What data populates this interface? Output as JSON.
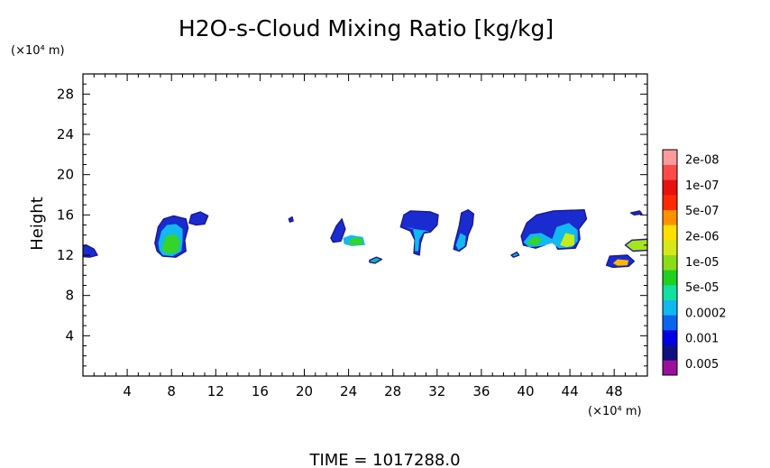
{
  "chart_data": {
    "type": "heatmap",
    "title": "H2O-s-Cloud Mixing Ratio [kg/kg]",
    "ylabel": "Height",
    "y_unit": "(×10⁴ m)",
    "x_unit": "(×10⁴ m)",
    "xlim": [
      0,
      51
    ],
    "ylim": [
      0,
      30
    ],
    "x_ticks": [
      "4",
      "8",
      "12",
      "16",
      "20",
      "24",
      "28",
      "32",
      "36",
      "40",
      "44",
      "48"
    ],
    "y_ticks": [
      "4",
      "8",
      "12",
      "16",
      "20",
      "24",
      "28"
    ],
    "time_label": "TIME = 1017288.0",
    "legend": {
      "placement": "right",
      "labels": [
        "0.005",
        "0.001",
        "0.0002",
        "5e-05",
        "1e-05",
        "2e-06",
        "5e-07",
        "1e-07",
        "2e-08"
      ],
      "colors": [
        "#9a109a",
        "#101080",
        "#0000e0",
        "#0a64f0",
        "#10b8f0",
        "#10e0a0",
        "#20d020",
        "#8cdc1a",
        "#d6e818",
        "#ffe000",
        "#ff9000",
        "#ff2a00",
        "#e81010",
        "#ff4a4a",
        "#ff9a9a"
      ]
    },
    "clouds": [
      {
        "name": "cloud-a",
        "bands": [
          [
            [
              -0.5,
              12.8
            ],
            [
              0.3,
              13.0
            ],
            [
              1.0,
              12.6
            ],
            [
              1.3,
              12.0
            ],
            [
              0.6,
              11.8
            ],
            [
              -0.5,
              11.9
            ]
          ]
        ]
      },
      {
        "name": "cloud-b",
        "bands": [
          [
            [
              6.5,
              13.2
            ],
            [
              6.8,
              14.8
            ],
            [
              7.3,
              15.6
            ],
            [
              8.2,
              15.9
            ],
            [
              9.3,
              15.6
            ],
            [
              9.5,
              14.7
            ],
            [
              9.2,
              13.5
            ],
            [
              9.3,
              12.4
            ],
            [
              8.4,
              11.8
            ],
            [
              7.2,
              11.9
            ],
            [
              6.7,
              12.4
            ]
          ],
          [
            [
              6.8,
              13.2
            ],
            [
              7.1,
              14.4
            ],
            [
              7.6,
              15.0
            ],
            [
              8.4,
              15.1
            ],
            [
              9.0,
              14.6
            ],
            [
              9.0,
              13.4
            ],
            [
              8.9,
              12.4
            ],
            [
              8.1,
              11.9
            ],
            [
              7.2,
              12.0
            ],
            [
              6.9,
              12.5
            ]
          ],
          [
            [
              7.1,
              12.6
            ],
            [
              7.5,
              13.9
            ],
            [
              8.3,
              14.1
            ],
            [
              8.8,
              13.4
            ],
            [
              8.6,
              12.3
            ],
            [
              7.6,
              12.1
            ]
          ]
        ]
      },
      {
        "name": "cloud-c",
        "bands": [
          [
            [
              9.6,
              15.2
            ],
            [
              9.8,
              16.0
            ],
            [
              10.6,
              16.3
            ],
            [
              11.3,
              15.9
            ],
            [
              11.0,
              15.1
            ],
            [
              10.2,
              15.0
            ]
          ]
        ]
      },
      {
        "name": "cloud-d",
        "bands": [
          [
            [
              18.6,
              15.6
            ],
            [
              18.9,
              15.8
            ],
            [
              19.0,
              15.4
            ],
            [
              18.7,
              15.3
            ]
          ]
        ]
      },
      {
        "name": "cloud-e",
        "bands": [
          [
            [
              22.4,
              13.7
            ],
            [
              22.9,
              14.9
            ],
            [
              23.4,
              15.6
            ],
            [
              23.7,
              14.6
            ],
            [
              23.3,
              13.4
            ],
            [
              22.6,
              13.3
            ]
          ],
          [
            [
              23.5,
              13.7
            ],
            [
              24.2,
              14.0
            ],
            [
              25.3,
              13.8
            ],
            [
              25.5,
              13.0
            ],
            [
              24.3,
              12.9
            ],
            [
              23.6,
              13.1
            ]
          ],
          [
            [
              23.9,
              13.3
            ],
            [
              24.6,
              13.8
            ],
            [
              25.3,
              13.6
            ],
            [
              25.2,
              13.0
            ],
            [
              24.2,
              13.0
            ]
          ]
        ]
      },
      {
        "name": "cloud-f",
        "bands": [
          [
            [
              25.9,
              11.5
            ],
            [
              26.5,
              11.8
            ],
            [
              27.0,
              11.6
            ],
            [
              26.4,
              11.2
            ],
            [
              25.9,
              11.3
            ]
          ]
        ]
      },
      {
        "name": "cloud-g",
        "bands": [
          [
            [
              28.7,
              14.8
            ],
            [
              29.0,
              16.0
            ],
            [
              29.6,
              16.4
            ],
            [
              31.4,
              16.3
            ],
            [
              32.1,
              16.0
            ],
            [
              32.0,
              15.0
            ],
            [
              31.4,
              14.3
            ],
            [
              30.8,
              14.2
            ],
            [
              30.5,
              13.2
            ],
            [
              30.4,
              12.0
            ],
            [
              29.9,
              12.2
            ],
            [
              30.0,
              13.5
            ],
            [
              29.6,
              14.4
            ]
          ],
          [
            [
              29.2,
              14.7
            ],
            [
              29.8,
              14.7
            ],
            [
              30.0,
              13.6
            ],
            [
              30.0,
              12.4
            ],
            [
              30.3,
              12.4
            ],
            [
              30.4,
              13.6
            ],
            [
              30.8,
              14.3
            ],
            [
              31.3,
              14.4
            ]
          ]
        ]
      },
      {
        "name": "cloud-h",
        "bands": [
          [
            [
              33.6,
              13.2
            ],
            [
              34.0,
              14.9
            ],
            [
              34.2,
              16.2
            ],
            [
              34.8,
              16.5
            ],
            [
              35.3,
              16.1
            ],
            [
              35.2,
              15.0
            ],
            [
              34.8,
              14.0
            ],
            [
              34.6,
              12.9
            ],
            [
              34.0,
              12.4
            ],
            [
              33.5,
              12.6
            ]
          ],
          [
            [
              33.7,
              13.0
            ],
            [
              34.1,
              14.2
            ],
            [
              34.6,
              13.9
            ],
            [
              34.5,
              12.9
            ],
            [
              33.9,
              12.5
            ]
          ]
        ]
      },
      {
        "name": "cloud-i",
        "bands": [
          [
            [
              39.6,
              13.9
            ],
            [
              40.1,
              15.2
            ],
            [
              41.0,
              16.0
            ],
            [
              42.5,
              16.4
            ],
            [
              45.3,
              16.5
            ],
            [
              45.5,
              15.6
            ],
            [
              44.8,
              14.6
            ],
            [
              44.9,
              13.6
            ],
            [
              44.5,
              12.7
            ],
            [
              42.9,
              12.6
            ],
            [
              42.5,
              13.6
            ],
            [
              41.7,
              13.0
            ],
            [
              40.9,
              12.7
            ],
            [
              39.8,
              13.0
            ]
          ],
          [
            [
              39.8,
              13.3
            ],
            [
              40.4,
              14.1
            ],
            [
              41.4,
              14.2
            ],
            [
              42.4,
              13.6
            ],
            [
              42.8,
              14.8
            ],
            [
              43.9,
              15.2
            ],
            [
              44.7,
              14.5
            ],
            [
              44.7,
              13.4
            ],
            [
              44.2,
              12.8
            ],
            [
              43.0,
              12.7
            ],
            [
              42.4,
              13.2
            ],
            [
              41.5,
              12.9
            ],
            [
              40.3,
              12.8
            ]
          ],
          [
            [
              40.1,
              13.2
            ],
            [
              40.8,
              13.9
            ],
            [
              41.5,
              13.6
            ],
            [
              41.0,
              12.9
            ]
          ],
          [
            [
              43.1,
              13.0
            ],
            [
              43.6,
              14.2
            ],
            [
              44.4,
              14.0
            ],
            [
              44.4,
              13.0
            ],
            [
              43.7,
              12.8
            ]
          ]
        ]
      },
      {
        "name": "cloud-j",
        "bands": [
          [
            [
              38.7,
              12.0
            ],
            [
              39.2,
              12.3
            ],
            [
              39.4,
              12.0
            ],
            [
              38.9,
              11.8
            ]
          ]
        ]
      },
      {
        "name": "cloud-k",
        "bands": [
          [
            [
              47.3,
              11.0
            ],
            [
              47.6,
              11.9
            ],
            [
              49.2,
              12.0
            ],
            [
              49.8,
              11.4
            ],
            [
              49.3,
              10.9
            ],
            [
              47.9,
              10.8
            ]
          ],
          [
            [
              47.9,
              11.2
            ],
            [
              48.3,
              11.6
            ],
            [
              49.3,
              11.5
            ],
            [
              49.2,
              11.0
            ],
            [
              48.3,
              10.95
            ]
          ]
        ]
      },
      {
        "name": "cloud-l",
        "bands": [
          [
            [
              49.0,
              13.0
            ],
            [
              49.6,
              13.5
            ],
            [
              51.2,
              13.6
            ],
            [
              51.2,
              12.5
            ],
            [
              49.7,
              12.4
            ]
          ]
        ]
      },
      {
        "name": "cloud-m",
        "bands": [
          [
            [
              49.5,
              16.2
            ],
            [
              50.3,
              16.4
            ],
            [
              50.5,
              16.1
            ],
            [
              49.8,
              16.0
            ]
          ]
        ]
      }
    ]
  }
}
